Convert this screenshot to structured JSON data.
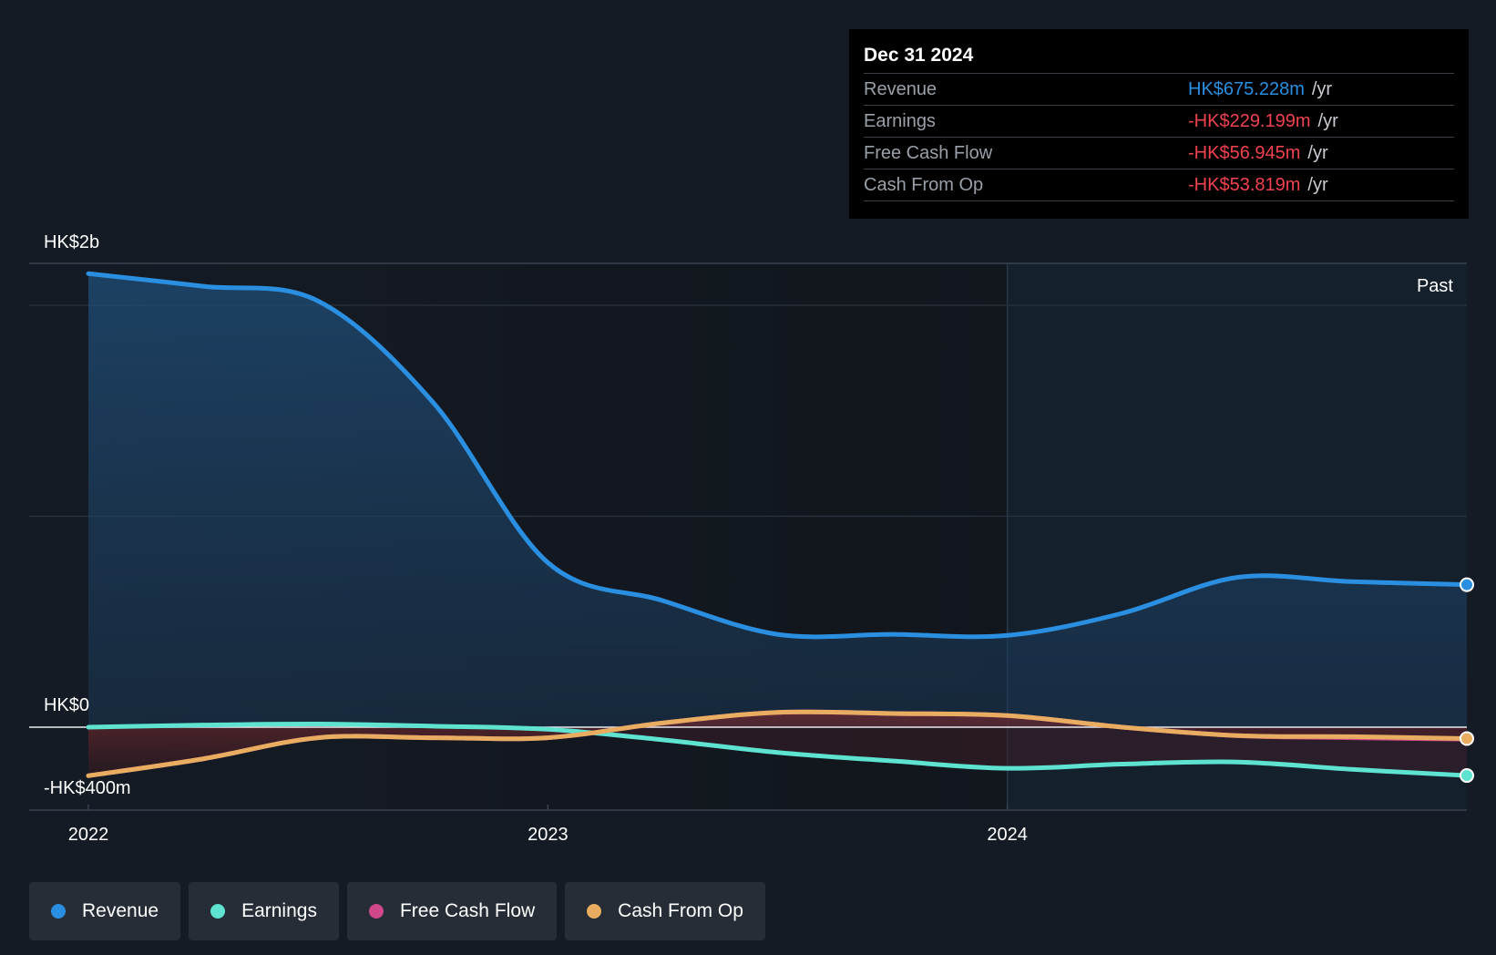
{
  "colors": {
    "revenue": "#2a8fe0",
    "earnings": "#5ee3d1",
    "free_cash_flow": "#d0478a",
    "cash_from_op": "#e8ad60",
    "negative_value": "#f0424f"
  },
  "tooltip": {
    "date": "Dec 31 2024",
    "rows": [
      {
        "name": "Revenue",
        "value": "HK$675.228m",
        "unit": "/yr",
        "color_key": "revenue"
      },
      {
        "name": "Earnings",
        "value": "-HK$229.199m",
        "unit": "/yr",
        "color_key": "negative_value"
      },
      {
        "name": "Free Cash Flow",
        "value": "-HK$56.945m",
        "unit": "/yr",
        "color_key": "negative_value"
      },
      {
        "name": "Cash From Op",
        "value": "-HK$53.819m",
        "unit": "/yr",
        "color_key": "negative_value"
      }
    ]
  },
  "legend": [
    {
      "label": "Revenue",
      "color_key": "revenue"
    },
    {
      "label": "Earnings",
      "color_key": "earnings"
    },
    {
      "label": "Free Cash Flow",
      "color_key": "free_cash_flow"
    },
    {
      "label": "Cash From Op",
      "color_key": "cash_from_op"
    }
  ],
  "chart_data": {
    "type": "line",
    "y_tick_labels": [
      "HK$2b",
      "HK$0",
      "-HK$400m"
    ],
    "x_tick_labels": [
      "2022",
      "2023",
      "2024"
    ],
    "past_label": "Past",
    "ylim": [
      -400,
      2200
    ],
    "xlim": [
      2022.0,
      2025.0
    ],
    "past_region_start": 2024.0,
    "series": [
      {
        "name": "Revenue",
        "color_key": "revenue",
        "points": [
          [
            2022.0,
            2150
          ],
          [
            2022.25,
            2090
          ],
          [
            2022.5,
            2020
          ],
          [
            2022.75,
            1540
          ],
          [
            2023.0,
            780
          ],
          [
            2023.25,
            600
          ],
          [
            2023.5,
            440
          ],
          [
            2023.75,
            440
          ],
          [
            2024.0,
            435
          ],
          [
            2024.25,
            540
          ],
          [
            2024.5,
            710
          ],
          [
            2024.75,
            690
          ],
          [
            2025.0,
            675.228
          ]
        ]
      },
      {
        "name": "Earnings",
        "color_key": "earnings",
        "points": [
          [
            2022.0,
            0
          ],
          [
            2022.25,
            10
          ],
          [
            2022.5,
            15
          ],
          [
            2022.75,
            5
          ],
          [
            2023.0,
            -10
          ],
          [
            2023.25,
            -60
          ],
          [
            2023.5,
            -120
          ],
          [
            2023.75,
            -160
          ],
          [
            2024.0,
            -195
          ],
          [
            2024.25,
            -175
          ],
          [
            2024.5,
            -165
          ],
          [
            2024.75,
            -200
          ],
          [
            2025.0,
            -229.199
          ]
        ]
      },
      {
        "name": "Free Cash Flow",
        "color_key": "free_cash_flow",
        "points": [
          [
            2022.0,
            -230
          ],
          [
            2022.25,
            -150
          ],
          [
            2022.5,
            -50
          ],
          [
            2022.75,
            -50
          ],
          [
            2023.0,
            -50
          ],
          [
            2023.25,
            20
          ],
          [
            2023.5,
            70
          ],
          [
            2023.75,
            65
          ],
          [
            2024.0,
            55
          ],
          [
            2024.25,
            0
          ],
          [
            2024.5,
            -40
          ],
          [
            2024.75,
            -50
          ],
          [
            2025.0,
            -56.945
          ]
        ]
      },
      {
        "name": "Cash From Op",
        "color_key": "cash_from_op",
        "points": [
          [
            2022.0,
            -230
          ],
          [
            2022.25,
            -150
          ],
          [
            2022.5,
            -50
          ],
          [
            2022.75,
            -50
          ],
          [
            2023.0,
            -50
          ],
          [
            2023.25,
            20
          ],
          [
            2023.5,
            70
          ],
          [
            2023.75,
            65
          ],
          [
            2024.0,
            55
          ],
          [
            2024.25,
            0
          ],
          [
            2024.5,
            -40
          ],
          [
            2024.75,
            -45
          ],
          [
            2025.0,
            -53.819
          ]
        ]
      }
    ]
  }
}
